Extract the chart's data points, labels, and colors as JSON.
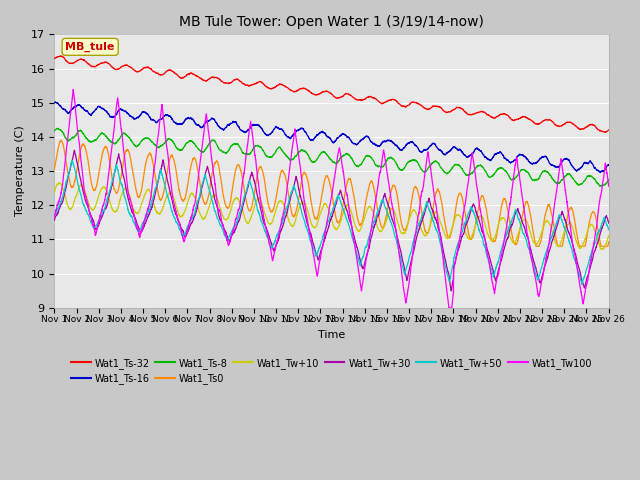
{
  "title": "MB Tule Tower: Open Water 1 (3/19/14-now)",
  "xlabel": "Time",
  "ylabel": "Temperature (C)",
  "ylim": [
    9.0,
    17.0
  ],
  "yticks": [
    9,
    10,
    11,
    12,
    13,
    14,
    15,
    16,
    17
  ],
  "xlim_start": 0,
  "xlim_end": 25,
  "xtick_labels": [
    "Nov 1",
    "Nov 2",
    "Nov 3",
    "Nov 4",
    "Nov 5",
    "Nov 6",
    "Nov 7",
    "Nov 8",
    "Nov 9",
    "Nov 10",
    "Nov 11",
    "Nov 12",
    "Nov 13",
    "Nov 14",
    "Nov 15",
    "Nov 16",
    "Nov 17",
    "Nov 18",
    "Nov 19",
    "Nov 20",
    "Nov 21",
    "Nov 22",
    "Nov 23",
    "Nov 24",
    "Nov 25",
    "Nov 26"
  ],
  "colors": {
    "Wat1_Ts-32": "#ff0000",
    "Wat1_Ts-16": "#0000cc",
    "Wat1_Ts-8": "#00bb00",
    "Wat1_Ts0": "#ff8800",
    "Wat1_Tw+10": "#cccc00",
    "Wat1_Tw+30": "#aa00aa",
    "Wat1_Tw+50": "#00cccc",
    "Wat1_Tw100": "#ff00ff"
  },
  "annotation_text": "MB_tule",
  "fig_bg": "#c8c8c8",
  "plot_bg": "#e8e8e8"
}
